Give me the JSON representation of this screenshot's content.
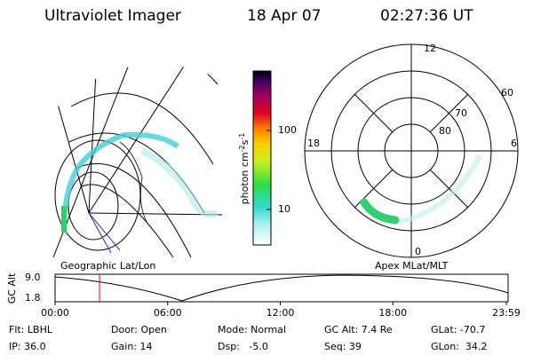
{
  "header": {
    "title": "Ultraviolet Imager",
    "date": "18 Apr 07",
    "time": "02:27:36 UT"
  },
  "colorbar": {
    "label": [
      "photon cm",
      "-2",
      "s",
      "-1"
    ],
    "ticks": [
      "100",
      "10"
    ]
  },
  "polar_plot": {
    "mlt_labels": [
      "12",
      "18",
      "6",
      "0"
    ],
    "mlat_labels": [
      "60",
      "70",
      "80"
    ]
  },
  "map_labels": [
    "Geographic Lat/Lon",
    "Apex MLat/MLT"
  ],
  "altitude_plot": {
    "ylabel": "GC Alt",
    "yticks": [
      "9.0",
      "1.8"
    ],
    "xticks": [
      "00:00",
      "06:00",
      "12:00",
      "18:00",
      "23:59"
    ]
  },
  "info": [
    [
      "Flt: LBHL",
      "Door: Open",
      "Mode: Normal",
      "GC Alt: 7.4 Re",
      "GLat: -70.7"
    ],
    [
      "IP: 36.0",
      "Gain: 14",
      "Dsp:   -5.0",
      "Seq: 39",
      "GLon:  34.2"
    ]
  ]
}
